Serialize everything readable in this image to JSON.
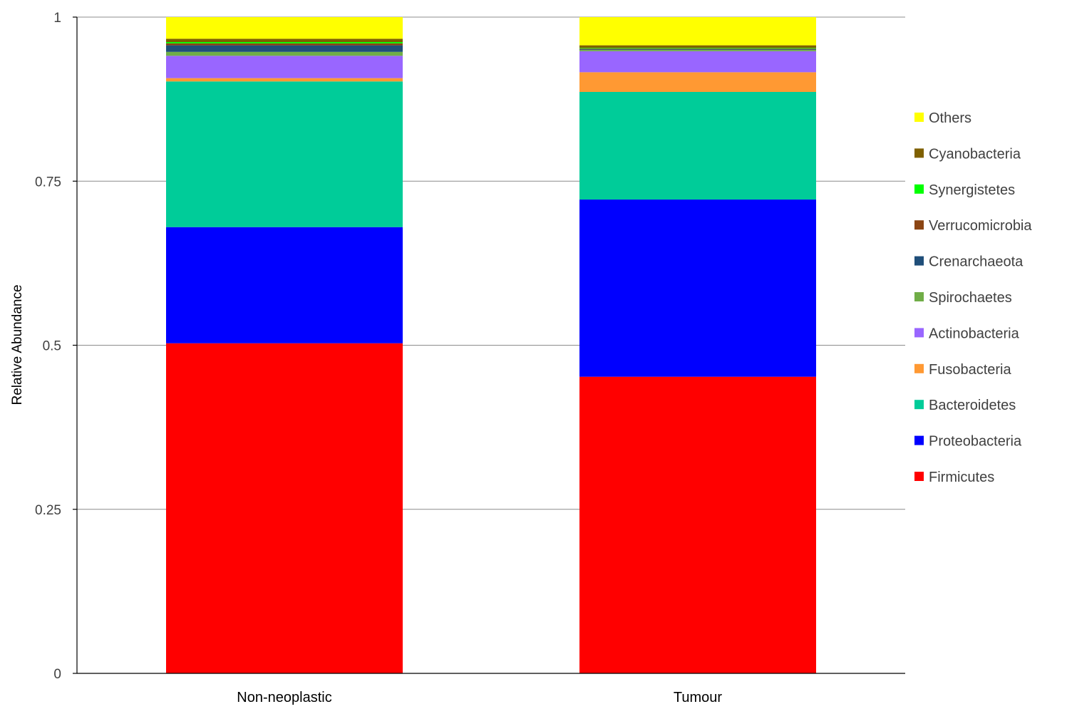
{
  "chart_data": {
    "type": "bar",
    "stacked": true,
    "xlabel": "",
    "ylabel": "Relative Abundance",
    "ylim": [
      0,
      1
    ],
    "y_ticks": [
      {
        "value": 0,
        "label": "0"
      },
      {
        "value": 0.25,
        "label": "0.25"
      },
      {
        "value": 0.5,
        "label": "0.5"
      },
      {
        "value": 0.75,
        "label": "0.75"
      },
      {
        "value": 1,
        "label": "1"
      }
    ],
    "grid": true,
    "legend_position": "right",
    "categories": [
      "Non-neoplastic",
      "Tumour"
    ],
    "series": [
      {
        "name": "Firmicutes",
        "color": "#FF0000",
        "values": [
          0.503,
          0.452
        ]
      },
      {
        "name": "Proteobacteria",
        "color": "#0000FF",
        "values": [
          0.177,
          0.27
        ]
      },
      {
        "name": "Bacteroidetes",
        "color": "#00CC99",
        "values": [
          0.222,
          0.164
        ]
      },
      {
        "name": "Fusobacteria",
        "color": "#FF9933",
        "values": [
          0.005,
          0.03
        ]
      },
      {
        "name": "Actinobacteria",
        "color": "#9966FF",
        "values": [
          0.034,
          0.032
        ]
      },
      {
        "name": "Spirochaetes",
        "color": "#70AD47",
        "values": [
          0.006,
          0.002
        ]
      },
      {
        "name": "Crenarchaeota",
        "color": "#1F4E79",
        "values": [
          0.01,
          0.001
        ]
      },
      {
        "name": "Verrucomicrobia",
        "color": "#8B4513",
        "values": [
          0.003,
          0.001
        ]
      },
      {
        "name": "Synergistetes",
        "color": "#00FF00",
        "values": [
          0.002,
          0.001
        ]
      },
      {
        "name": "Cyanobacteria",
        "color": "#7F6000",
        "values": [
          0.005,
          0.004
        ]
      },
      {
        "name": "Others",
        "color": "#FFFF00",
        "values": [
          0.033,
          0.043
        ]
      }
    ]
  }
}
